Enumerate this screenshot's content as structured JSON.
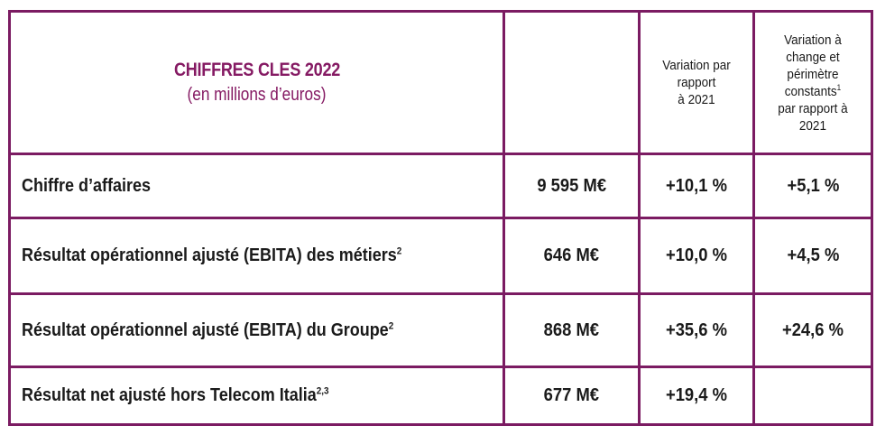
{
  "header": {
    "title": "CHIFFRES CLES 2022",
    "subtitle": "(en millions d’euros)",
    "col_variation_lines": [
      "Variation par",
      "rapport",
      "à 2021"
    ],
    "col_constant_lines": [
      "Variation à",
      "change et",
      "périmètre",
      "constants",
      "par rapport à",
      "2021"
    ],
    "col_constant_sup": "1"
  },
  "rows": [
    {
      "label": "Chiffre d’affaires",
      "sup": "",
      "value": "9 595 M€",
      "variation": "+10,1 %",
      "constant": "+5,1 %"
    },
    {
      "label": "Résultat opérationnel ajusté (EBITA) des métiers",
      "sup": "2",
      "value": "646 M€",
      "variation": "+10,0 %",
      "constant": "+4,5 %"
    },
    {
      "label": "Résultat opérationnel ajusté (EBITA) du Groupe",
      "sup": "2",
      "value": "868 M€",
      "variation": "+35,6 %",
      "constant": "+24,6 %"
    },
    {
      "label": "Résultat net ajusté hors Telecom Italia",
      "sup": "2,3",
      "value": "677 M€",
      "variation": "+19,4 %",
      "constant": ""
    }
  ]
}
